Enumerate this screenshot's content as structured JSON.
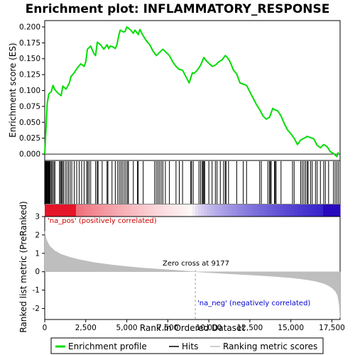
{
  "chart_data": {
    "type": "line",
    "title": "Enrichment plot: INFLAMMATORY_RESPONSE",
    "xlabel": "Rank in Ordered Dataset",
    "ylabel_top": "Enrichment score (ES)",
    "ylabel_bottom": "Ranked list metric (PreRanked)",
    "xlim": [
      0,
      18000
    ],
    "x_ticks": [
      0,
      2500,
      5000,
      7500,
      10000,
      12500,
      15000,
      17500
    ],
    "x_tick_labels": [
      "0",
      "2,500",
      "5,000",
      "7,500",
      "10,000",
      "12,500",
      "15,000",
      "17,500"
    ],
    "es_ylim": [
      -0.01,
      0.21
    ],
    "es_ticks": [
      0.0,
      0.025,
      0.05,
      0.075,
      0.1,
      0.125,
      0.15,
      0.175,
      0.2
    ],
    "es_tick_labels": [
      "0.000",
      "0.025",
      "0.050",
      "0.075",
      "0.100",
      "0.125",
      "0.150",
      "0.175",
      "0.200"
    ],
    "metric_ylim": [
      -2.6,
      3.0
    ],
    "metric_ticks": [
      3,
      2,
      1,
      0,
      -1,
      -2
    ],
    "metric_tick_labels": [
      "3",
      "2",
      "1",
      "0",
      "-1",
      "-2"
    ],
    "zero_cross": 9177,
    "zero_cross_label": "Zero cross at 9177",
    "pos_label": "'na_pos' (positively correlated)",
    "neg_label": "'na_neg' (negatively correlated)",
    "series": [
      {
        "name": "Enrichment profile",
        "color": "#00dd00",
        "x": [
          0,
          80,
          150,
          250,
          400,
          500,
          600,
          800,
          1000,
          1100,
          1300,
          1500,
          1600,
          1800,
          2000,
          2200,
          2400,
          2500,
          2600,
          2800,
          3000,
          3100,
          3200,
          3400,
          3600,
          3800,
          3900,
          4000,
          4200,
          4300,
          4400,
          4500,
          4600,
          4800,
          4900,
          5000,
          5100,
          5200,
          5400,
          5500,
          5700,
          5800,
          6000,
          6200,
          6400,
          6600,
          6800,
          7000,
          7200,
          7400,
          7600,
          7800,
          8000,
          8200,
          8400,
          8600,
          8800,
          9000,
          9100,
          9300,
          9500,
          9700,
          9800,
          10000,
          10200,
          10400,
          10600,
          10800,
          11000,
          11100,
          11300,
          11500,
          11700,
          11900,
          12100,
          12300,
          12500,
          12700,
          12900,
          13100,
          13300,
          13500,
          13700,
          13900,
          14000,
          14200,
          14400,
          14600,
          14800,
          15000,
          15200,
          15400,
          15600,
          15800,
          16000,
          16200,
          16400,
          16600,
          16800,
          17000,
          17200,
          17400,
          17600,
          17800,
          17900
        ],
        "values": [
          0.0,
          0.04,
          0.08,
          0.095,
          0.098,
          0.108,
          0.102,
          0.096,
          0.092,
          0.107,
          0.102,
          0.112,
          0.122,
          0.128,
          0.136,
          0.142,
          0.138,
          0.145,
          0.165,
          0.17,
          0.158,
          0.155,
          0.176,
          0.172,
          0.165,
          0.172,
          0.166,
          0.17,
          0.168,
          0.166,
          0.172,
          0.185,
          0.195,
          0.192,
          0.193,
          0.2,
          0.198,
          0.196,
          0.19,
          0.195,
          0.188,
          0.196,
          0.186,
          0.178,
          0.172,
          0.162,
          0.155,
          0.16,
          0.165,
          0.16,
          0.155,
          0.145,
          0.138,
          0.133,
          0.132,
          0.122,
          0.112,
          0.128,
          0.127,
          0.132,
          0.14,
          0.152,
          0.148,
          0.143,
          0.138,
          0.14,
          0.145,
          0.148,
          0.155,
          0.153,
          0.145,
          0.132,
          0.126,
          0.112,
          0.11,
          0.108,
          0.098,
          0.088,
          0.078,
          0.07,
          0.06,
          0.055,
          0.058,
          0.072,
          0.07,
          0.068,
          0.06,
          0.048,
          0.038,
          0.032,
          0.025,
          0.015,
          0.022,
          0.025,
          0.028,
          0.026,
          0.024,
          0.014,
          0.01,
          0.015,
          0.012,
          0.004,
          0.001,
          -0.004,
          0.003
        ]
      },
      {
        "name": "Hits",
        "color": "#000000"
      },
      {
        "name": "Ranking metric scores",
        "color": "#bebebe"
      }
    ],
    "hits": [
      10,
      30,
      60,
      90,
      120,
      150,
      180,
      220,
      260,
      300,
      350,
      420,
      480,
      560,
      620,
      900,
      960,
      1020,
      1080,
      1140,
      1250,
      1350,
      1450,
      1550,
      1650,
      1800,
      1950,
      2100,
      2250,
      2400,
      2550,
      2620,
      2700,
      2800,
      3100,
      3200,
      3250,
      3500,
      3800,
      3850,
      4100,
      4300,
      4450,
      4550,
      4650,
      4750,
      4850,
      4950,
      5050,
      5100,
      5400,
      5650,
      5700,
      6000,
      6700,
      6800,
      6900,
      7000,
      7100,
      7200,
      7350,
      7600,
      8000,
      8200,
      8400,
      8900,
      8950,
      9050,
      9400,
      9500,
      9600,
      9650,
      9700,
      9750,
      10000,
      10200,
      10400,
      10500,
      10700,
      10900,
      11000,
      11050,
      11200,
      11700,
      12100,
      12300,
      13100,
      13200,
      13600,
      13700,
      13750,
      13800,
      14000,
      14050,
      14100,
      14400,
      15100,
      15200,
      15600,
      15700,
      15800,
      15900,
      16000,
      16050,
      16200,
      16300,
      16500,
      16600,
      16800,
      17000,
      17100,
      17300,
      17600,
      17700,
      17800,
      17900
    ],
    "metric_curve": {
      "x": [
        0,
        100,
        300,
        600,
        1000,
        1500,
        2000,
        3000,
        4000,
        5000,
        6000,
        7000,
        8000,
        9177,
        10000,
        11000,
        12000,
        13000,
        14000,
        15000,
        15500,
        16000,
        16500,
        17000,
        17300,
        17500,
        17700,
        17850,
        17950,
        18000
      ],
      "values": [
        2.2,
        1.75,
        1.4,
        1.15,
        0.95,
        0.8,
        0.68,
        0.5,
        0.38,
        0.28,
        0.2,
        0.14,
        0.08,
        0.0,
        -0.05,
        -0.1,
        -0.15,
        -0.2,
        -0.26,
        -0.33,
        -0.38,
        -0.44,
        -0.52,
        -0.64,
        -0.76,
        -0.88,
        -1.05,
        -1.3,
        -1.8,
        -2.5
      ]
    }
  },
  "legend": {
    "items": [
      {
        "label": "Enrichment profile",
        "color": "#00dd00"
      },
      {
        "label": "Hits",
        "color": "#000000"
      },
      {
        "label": "Ranking metric scores",
        "color": "#bebebe"
      }
    ]
  }
}
